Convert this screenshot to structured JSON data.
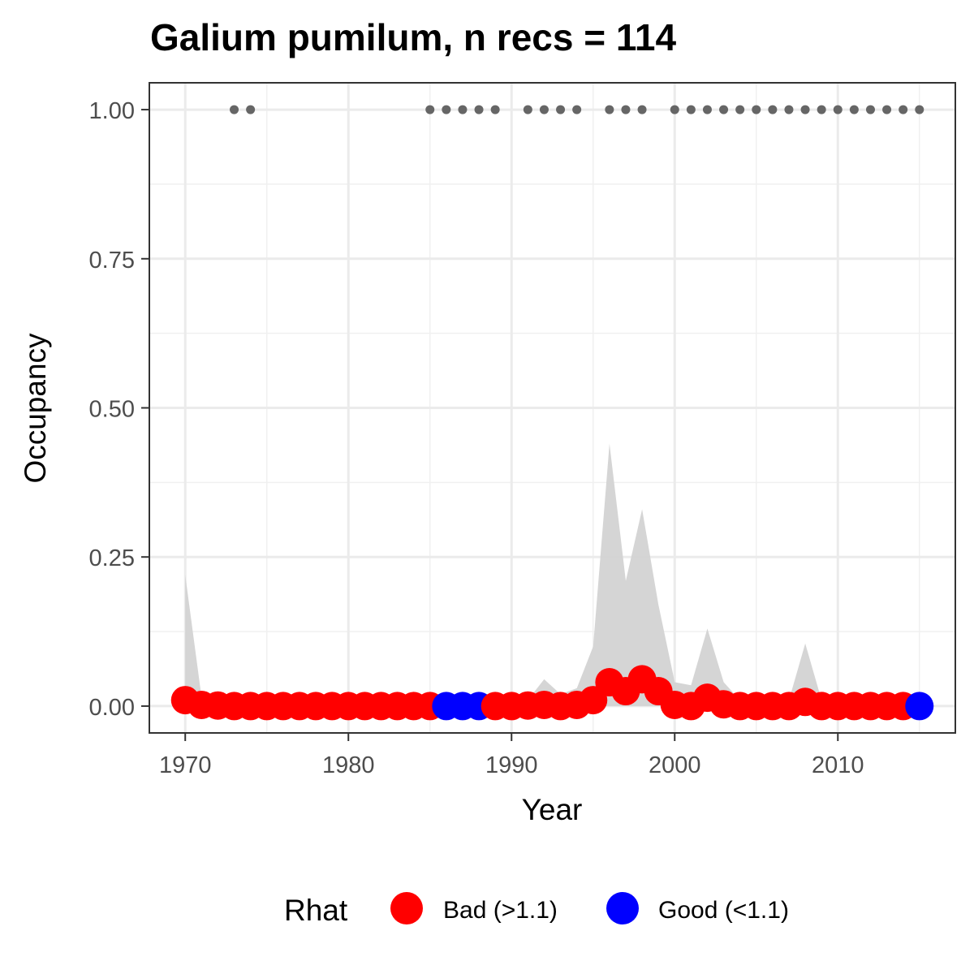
{
  "chart_data": {
    "type": "line",
    "title": "Galium pumilum, n recs = 114",
    "xlabel": "Year",
    "ylabel": "Occupancy",
    "xlim": [
      1967.8,
      2017.2
    ],
    "ylim": [
      -0.045,
      1.045
    ],
    "x_ticks": [
      1970,
      1980,
      1990,
      2000,
      2010
    ],
    "x_tick_labels": [
      "1970",
      "1980",
      "1990",
      "2000",
      "2010"
    ],
    "y_ticks": [
      0,
      0.25,
      0.5,
      0.75,
      1.0
    ],
    "y_tick_labels": [
      "0.00",
      "0.25",
      "0.50",
      "0.75",
      "1.00"
    ],
    "grid": true,
    "legend": {
      "title": "Rhat",
      "position": "bottom",
      "items": [
        {
          "label": "Bad (>1.1)",
          "color": "#ff0000"
        },
        {
          "label": "Good (<1.1)",
          "color": "#0000ff"
        }
      ]
    },
    "colors": {
      "bad": "#ff0000",
      "good": "#0000ff",
      "ribbon": "#d3d3d3",
      "records": "#666666"
    },
    "series": [
      {
        "name": "Occupancy",
        "x": [
          1970,
          1971,
          1972,
          1973,
          1974,
          1975,
          1976,
          1977,
          1978,
          1979,
          1980,
          1981,
          1982,
          1983,
          1984,
          1985,
          1986,
          1987,
          1988,
          1989,
          1990,
          1991,
          1992,
          1993,
          1994,
          1995,
          1996,
          1997,
          1998,
          1999,
          2000,
          2001,
          2002,
          2003,
          2004,
          2005,
          2006,
          2007,
          2008,
          2009,
          2010,
          2011,
          2012,
          2013,
          2014,
          2015
        ],
        "y": [
          0.01,
          0.002,
          0.001,
          0,
          0,
          0,
          0,
          0,
          0,
          0,
          0,
          0,
          0,
          0,
          0,
          0,
          0,
          0,
          0,
          0,
          0,
          0.001,
          0.002,
          0,
          0.002,
          0.01,
          0.04,
          0.025,
          0.045,
          0.025,
          0.002,
          0,
          0.014,
          0.003,
          0,
          0,
          0,
          0,
          0.007,
          0,
          0,
          0,
          0,
          0,
          0,
          0
        ],
        "rhat": [
          "Bad",
          "Bad",
          "Bad",
          "Bad",
          "Bad",
          "Bad",
          "Bad",
          "Bad",
          "Bad",
          "Bad",
          "Bad",
          "Bad",
          "Bad",
          "Bad",
          "Bad",
          "Bad",
          "Good",
          "Good",
          "Good",
          "Bad",
          "Bad",
          "Bad",
          "Bad",
          "Bad",
          "Bad",
          "Bad",
          "Bad",
          "Bad",
          "Bad",
          "Bad",
          "Bad",
          "Bad",
          "Bad",
          "Bad",
          "Bad",
          "Bad",
          "Bad",
          "Bad",
          "Bad",
          "Bad",
          "Bad",
          "Bad",
          "Bad",
          "Bad",
          "Bad",
          "Good"
        ],
        "upper": [
          0.22,
          0.015,
          0.005,
          0.003,
          0.003,
          0.003,
          0.003,
          0.003,
          0.003,
          0.003,
          0.003,
          0.003,
          0.003,
          0.003,
          0.003,
          0.003,
          0.003,
          0.003,
          0.003,
          0.003,
          0.005,
          0.01,
          0.045,
          0.02,
          0.03,
          0.1,
          0.44,
          0.21,
          0.33,
          0.17,
          0.04,
          0.035,
          0.13,
          0.04,
          0.01,
          0.01,
          0.01,
          0.01,
          0.105,
          0.01,
          0.005,
          0.005,
          0.005,
          0.005,
          0.005,
          0.005
        ],
        "lower": [
          0,
          0,
          0,
          0,
          0,
          0,
          0,
          0,
          0,
          0,
          0,
          0,
          0,
          0,
          0,
          0,
          0,
          0,
          0,
          0,
          0,
          0,
          0,
          0,
          0,
          0,
          0,
          0,
          0,
          0,
          0,
          0,
          0,
          0,
          0,
          0,
          0,
          0,
          0,
          0,
          0,
          0,
          0,
          0,
          0,
          0
        ]
      },
      {
        "name": "Records",
        "x": [
          1973,
          1974,
          1985,
          1986,
          1987,
          1988,
          1989,
          1991,
          1992,
          1993,
          1994,
          1996,
          1997,
          1998,
          2000,
          2001,
          2002,
          2003,
          2004,
          2005,
          2006,
          2007,
          2008,
          2009,
          2010,
          2011,
          2012,
          2013,
          2014,
          2015
        ],
        "y": [
          1,
          1,
          1,
          1,
          1,
          1,
          1,
          1,
          1,
          1,
          1,
          1,
          1,
          1,
          1,
          1,
          1,
          1,
          1,
          1,
          1,
          1,
          1,
          1,
          1,
          1,
          1,
          1,
          1,
          1
        ]
      }
    ]
  }
}
